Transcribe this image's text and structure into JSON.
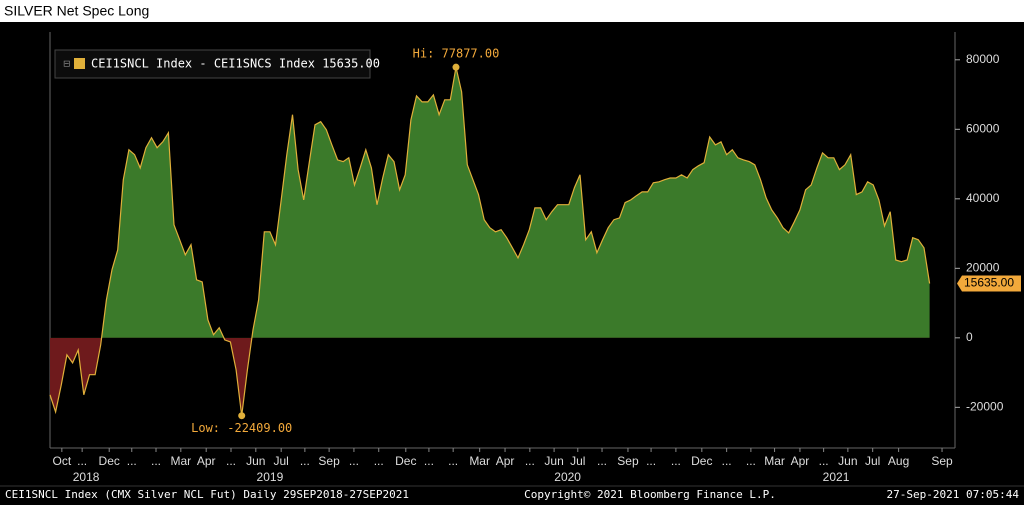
{
  "chart_data": {
    "type": "area",
    "title": "SILVER Net Spec Long",
    "series": [
      {
        "name": "CEI1SNCL Index - CEI1SNCS Index 15635.00",
        "color": "#e0b03a",
        "positive_color": "#3b7a2a",
        "negative_color": "#6e1a1c",
        "values": [
          -16400,
          -21300,
          -13500,
          -4900,
          -7200,
          -3500,
          -16400,
          -10600,
          -10600,
          -2000,
          10900,
          19600,
          25300,
          45500,
          54100,
          52700,
          48900,
          54700,
          57600,
          54700,
          56400,
          59000,
          32500,
          28200,
          23900,
          26800,
          16700,
          16100,
          5200,
          900,
          2900,
          -600,
          -1200,
          -9200,
          -22409,
          -9200,
          2300,
          10900,
          30500,
          30500,
          26800,
          39700,
          52700,
          64200,
          48400,
          39700,
          50700,
          61300,
          62200,
          59900,
          55500,
          51200,
          50700,
          51800,
          44000,
          48900,
          54100,
          48900,
          38300,
          46000,
          52700,
          50700,
          42600,
          46900,
          62700,
          69600,
          67900,
          67900,
          69900,
          64200,
          68500,
          68500,
          77877,
          70800,
          49800,
          45500,
          41200,
          34000,
          31700,
          30500,
          31100,
          28800,
          25900,
          23000,
          26800,
          31100,
          37400,
          37400,
          34000,
          36300,
          38300,
          38300,
          38300,
          43200,
          46900,
          28200,
          30500,
          24500,
          28200,
          31700,
          34000,
          34500,
          38900,
          39700,
          40900,
          42000,
          42000,
          44600,
          44900,
          45500,
          46000,
          46000,
          46900,
          46000,
          48400,
          49500,
          50400,
          57800,
          55500,
          56400,
          52700,
          54100,
          51800,
          51200,
          50700,
          49800,
          45500,
          40300,
          36800,
          34500,
          31700,
          30200,
          33400,
          36800,
          42600,
          44000,
          48900,
          53200,
          51800,
          51800,
          48400,
          49800,
          52700,
          41200,
          42000,
          44900,
          44000,
          39700,
          32200,
          36300,
          22400,
          21900,
          22400,
          28800,
          28200,
          25900,
          15635
        ],
        "last_label": "15635.00"
      }
    ],
    "annotations": [
      {
        "label": "Hi: 77877.00",
        "value": 77877
      },
      {
        "label": "Low: -22409.00",
        "value": -22409
      }
    ],
    "xlim": [
      0,
      160.5
    ],
    "xticks": [
      {
        "value": 2.1,
        "label": "Oct"
      },
      {
        "value": 5.7,
        "label": "..."
      },
      {
        "value": 10.5,
        "label": "Dec"
      },
      {
        "value": 14.5,
        "label": "..."
      },
      {
        "value": 18.8,
        "label": "..."
      },
      {
        "value": 23.2,
        "label": "Mar"
      },
      {
        "value": 27.7,
        "label": "Apr"
      },
      {
        "value": 32.1,
        "label": "..."
      },
      {
        "value": 36.5,
        "label": "Jun"
      },
      {
        "value": 41,
        "label": "Jul"
      },
      {
        "value": 45.2,
        "label": "..."
      },
      {
        "value": 49.5,
        "label": "Sep"
      },
      {
        "value": 53.9,
        "label": "..."
      },
      {
        "value": 58.3,
        "label": "..."
      },
      {
        "value": 63.1,
        "label": "Dec"
      },
      {
        "value": 67.2,
        "label": "..."
      },
      {
        "value": 71.5,
        "label": "..."
      },
      {
        "value": 76.2,
        "label": "Mar"
      },
      {
        "value": 80.7,
        "label": "Apr"
      },
      {
        "value": 85.1,
        "label": "..."
      },
      {
        "value": 89.4,
        "label": "Jun"
      },
      {
        "value": 93.6,
        "label": "Jul"
      },
      {
        "value": 97.9,
        "label": "..."
      },
      {
        "value": 102.5,
        "label": "Sep"
      },
      {
        "value": 106.6,
        "label": "..."
      },
      {
        "value": 111,
        "label": "..."
      },
      {
        "value": 115.6,
        "label": "Dec"
      },
      {
        "value": 120,
        "label": "..."
      },
      {
        "value": 124.3,
        "label": "..."
      },
      {
        "value": 128.5,
        "label": "Mar"
      },
      {
        "value": 133,
        "label": "Apr"
      },
      {
        "value": 137.2,
        "label": "..."
      },
      {
        "value": 141.5,
        "label": "Jun"
      },
      {
        "value": 145.9,
        "label": "Jul"
      },
      {
        "value": 150.5,
        "label": "Aug"
      },
      {
        "value": 158.2,
        "label": "Sep"
      }
    ],
    "years": [
      {
        "value": 6.4,
        "label": "2018"
      },
      {
        "value": 39,
        "label": "2019"
      },
      {
        "value": 91.8,
        "label": "2020"
      },
      {
        "value": 139.4,
        "label": "2021"
      }
    ],
    "ylim": [
      -31700,
      88000
    ],
    "yticks": [
      -20000,
      0,
      20000,
      40000,
      60000,
      80000
    ],
    "footer": [
      "CEI1SNCL Index (CMX Silver NCL Fut)  Daily 29SEP2018-27SEP2021",
      "Copyright© 2021 Bloomberg Finance L.P.",
      "27-Sep-2021 07:05:44"
    ]
  }
}
